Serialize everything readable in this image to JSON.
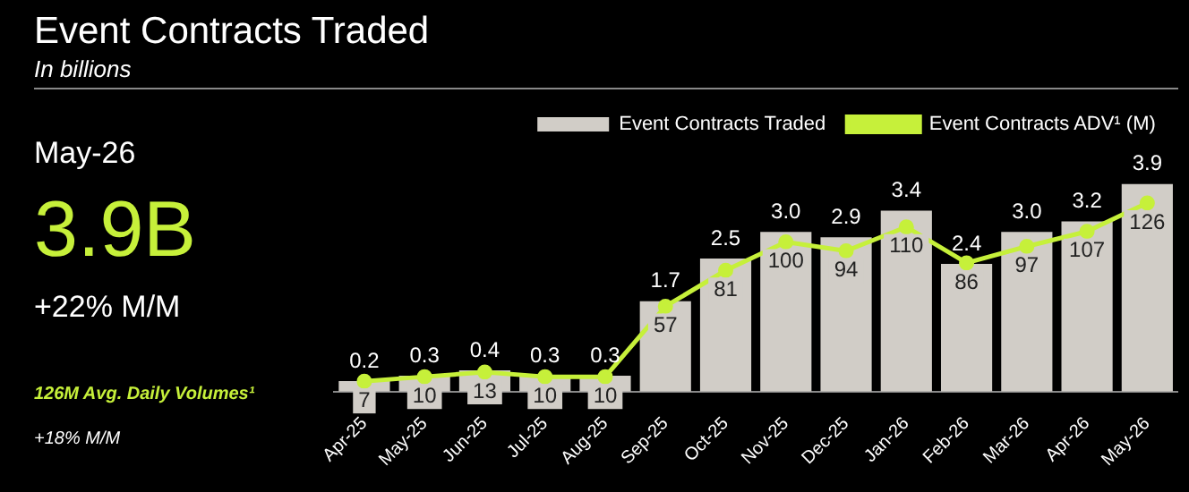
{
  "chart_data": {
    "type": "bar",
    "title": "Event Contracts Traded",
    "subtitle": "In billions",
    "annotations": [
      "May-26",
      "3.9B",
      "+22% M/M",
      "126M Avg. Daily Volumes¹",
      "+18% M/M"
    ],
    "categories": [
      "Apr-25",
      "May-25",
      "Jun-25",
      "Jul-25",
      "Aug-25",
      "Sep-25",
      "Oct-25",
      "Nov-25",
      "Dec-25",
      "Jan-26",
      "Feb-26",
      "Mar-26",
      "Apr-26",
      "May-26"
    ],
    "series": [
      {
        "name": "Event Contracts Traded",
        "color": "#d1cdc7",
        "values": [
          0.2,
          0.3,
          0.4,
          0.3,
          0.3,
          1.7,
          2.5,
          3.0,
          2.9,
          3.4,
          2.4,
          3.0,
          3.2,
          3.9
        ],
        "value_labels": [
          "0.2",
          "0.3",
          "0.4",
          "0.3",
          "0.3",
          "1.7",
          "2.5",
          "3.0",
          "2.9",
          "3.4",
          "2.4",
          "3.0",
          "3.2",
          "3.9"
        ]
      },
      {
        "name": "Event Contracts ADV¹ (M)",
        "type": "line",
        "axis": "y2",
        "color": "#c6f03a",
        "values": [
          7,
          10,
          13,
          10,
          10,
          57,
          81,
          100,
          94,
          110,
          86,
          97,
          107,
          126
        ]
      }
    ],
    "tick_labels": "x",
    "data_labels": true,
    "legend": "top",
    "marker": "circle"
  }
}
